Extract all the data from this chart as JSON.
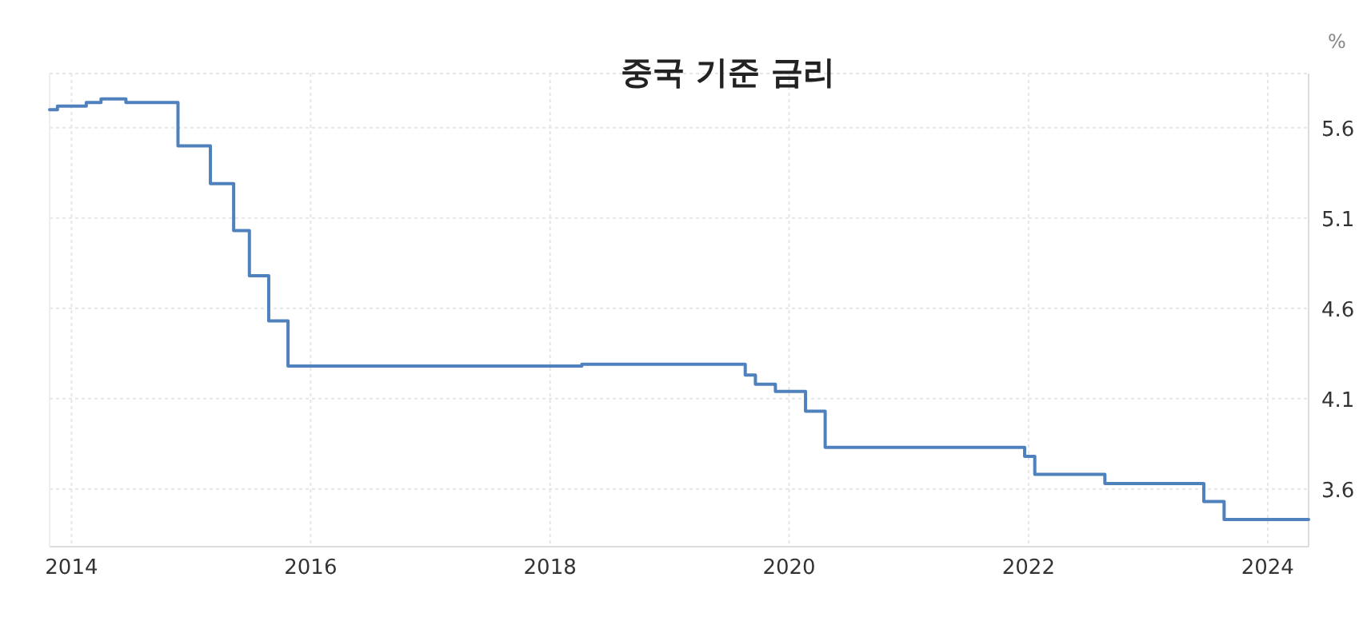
{
  "chart_data": {
    "type": "step",
    "title": "중국 기준 금리",
    "ylabel": "%",
    "x": [
      "2013-10-26",
      "2013-11-19",
      "2014-02-15",
      "2014-04-01",
      "2014-06-16",
      "2014-11-22",
      "2015-03-01",
      "2015-05-11",
      "2015-06-28",
      "2015-08-26",
      "2015-10-24",
      "2018-04-08",
      "2019-08-20",
      "2019-09-20",
      "2019-11-20",
      "2020-02-20",
      "2020-04-20",
      "2021-12-20",
      "2022-01-20",
      "2022-08-22",
      "2023-06-20",
      "2023-08-21",
      "2024-05-05"
    ],
    "series": [
      {
        "color": "#4f81bd",
        "values": [
          5.7,
          5.72,
          5.74,
          5.76,
          5.74,
          5.5,
          5.29,
          5.03,
          4.78,
          4.53,
          4.28,
          4.29,
          4.23,
          4.18,
          4.14,
          4.03,
          3.83,
          3.78,
          3.68,
          3.63,
          3.53,
          3.43,
          3.43
        ]
      }
    ],
    "xlim": [
      "2013-10-26",
      "2024-05-05"
    ],
    "xticks": [
      "2014",
      "2016",
      "2018",
      "2020",
      "2022",
      "2024"
    ],
    "ylim": [
      3.28,
      5.9
    ],
    "yticks": [
      3.6,
      4.1,
      4.6,
      5.1,
      5.6
    ],
    "grid": true
  }
}
